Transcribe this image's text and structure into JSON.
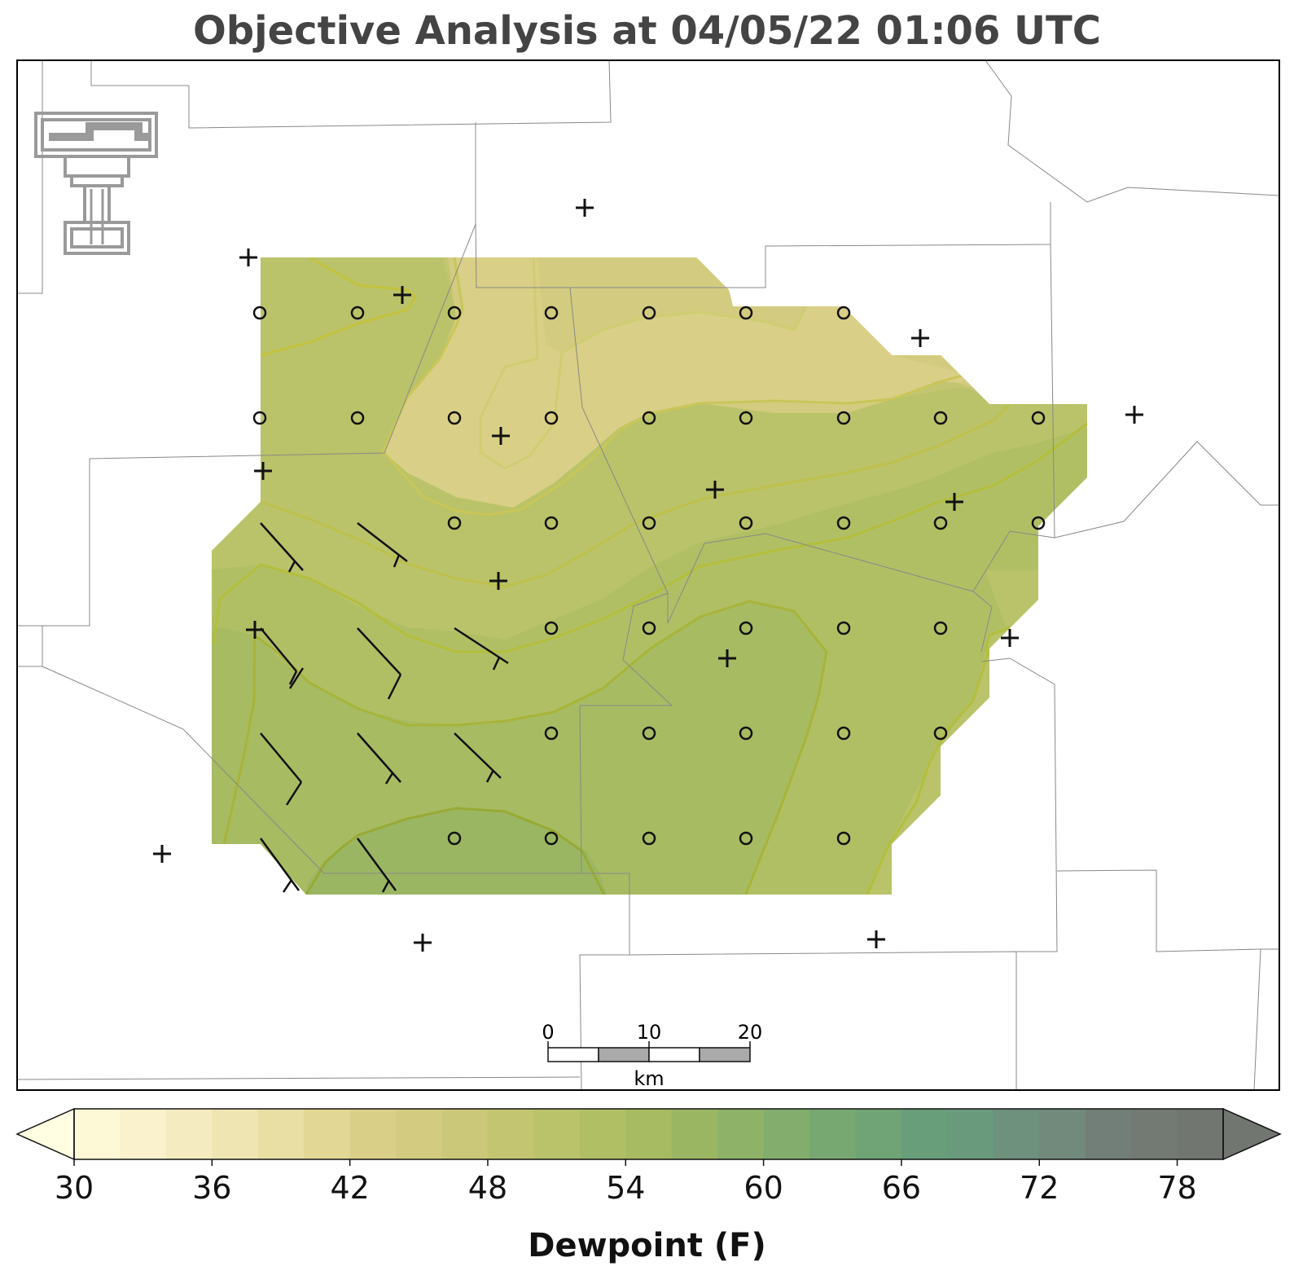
{
  "title": "Objective Analysis at 04/05/22 01:06 UTC",
  "colorbar": {
    "label": "Dewpoint (F)",
    "min": 30,
    "max": 80,
    "step": 2,
    "ticks": [
      "30",
      "36",
      "42",
      "48",
      "54",
      "60",
      "66",
      "72",
      "78"
    ],
    "extend": "both",
    "colors": [
      "#fdf8d6",
      "#f9f2cc",
      "#f4ecc0",
      "#efe5b3",
      "#e9dea4",
      "#e2d795",
      "#dacf86",
      "#d3cb7f",
      "#cbc879",
      "#c3c571",
      "#bac369",
      "#b1bf64",
      "#a7bb62",
      "#9bb663",
      "#8eb267",
      "#82ad6c",
      "#78a872",
      "#70a376",
      "#689e7a",
      "#6a9a7c",
      "#6e917d",
      "#718a7b",
      "#727f78",
      "#727a73",
      "#717670"
    ]
  },
  "scale_bar": {
    "labels": [
      "0",
      "10",
      "20"
    ],
    "unit": "km"
  },
  "map": {
    "field": "dewpoint",
    "contour_interval_f": 2,
    "range_shown_f": [
      42,
      54
    ],
    "missing_station_marker": "plus",
    "calm_station_marker": "circle",
    "logo": "texas-tech-double-t-logo"
  }
}
